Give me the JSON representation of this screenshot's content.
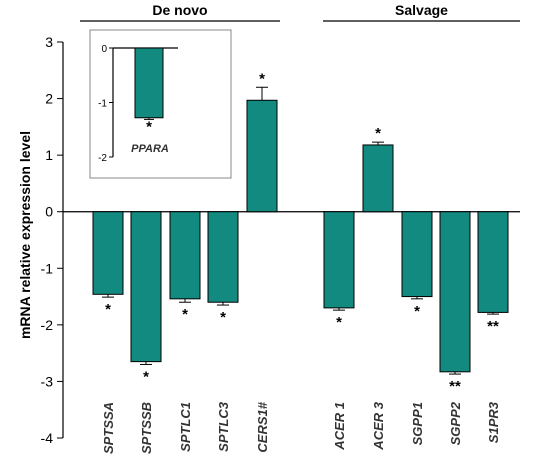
{
  "chart_data": {
    "type": "bar",
    "title": "",
    "ylabel": "mRNA relative expression level",
    "xlabel": "",
    "ylim": [
      -4,
      3
    ],
    "yticks": [
      -4,
      -3,
      -2,
      -1,
      0,
      1,
      2,
      3
    ],
    "bar_color": "#138a80",
    "groups": [
      {
        "label": "De novo",
        "categories": [
          "SPTSSA",
          "SPTSSB",
          "SPTLC1",
          "SPTLC3",
          "CERS1#"
        ]
      },
      {
        "label": "Salvage",
        "categories": [
          "ACER 1",
          "ACER 3",
          "SGPP1",
          "SGPP2",
          "S1PR3"
        ]
      }
    ],
    "categories": [
      "SPTSSA",
      "SPTSSB",
      "SPTLC1",
      "SPTLC3",
      "CERS1#",
      "ACER 1",
      "ACER 3",
      "SGPP1",
      "SGPP2",
      "S1PR3"
    ],
    "values": [
      -1.46,
      -2.65,
      -1.54,
      -1.6,
      1.97,
      -1.7,
      1.18,
      -1.5,
      -2.83,
      -1.78
    ],
    "errors": [
      0.05,
      0.05,
      0.06,
      0.05,
      0.23,
      0.04,
      0.05,
      0.04,
      0.04,
      0.03
    ],
    "significance": [
      "*",
      "*",
      "*",
      "*",
      "*",
      "*",
      "*",
      "*",
      "**",
      "**"
    ],
    "inset": {
      "category": "PPARA",
      "value": -1.28,
      "error": 0.03,
      "significance": "*",
      "ylim": [
        -2,
        0
      ],
      "yticks": [
        0,
        -1,
        -2
      ]
    }
  }
}
